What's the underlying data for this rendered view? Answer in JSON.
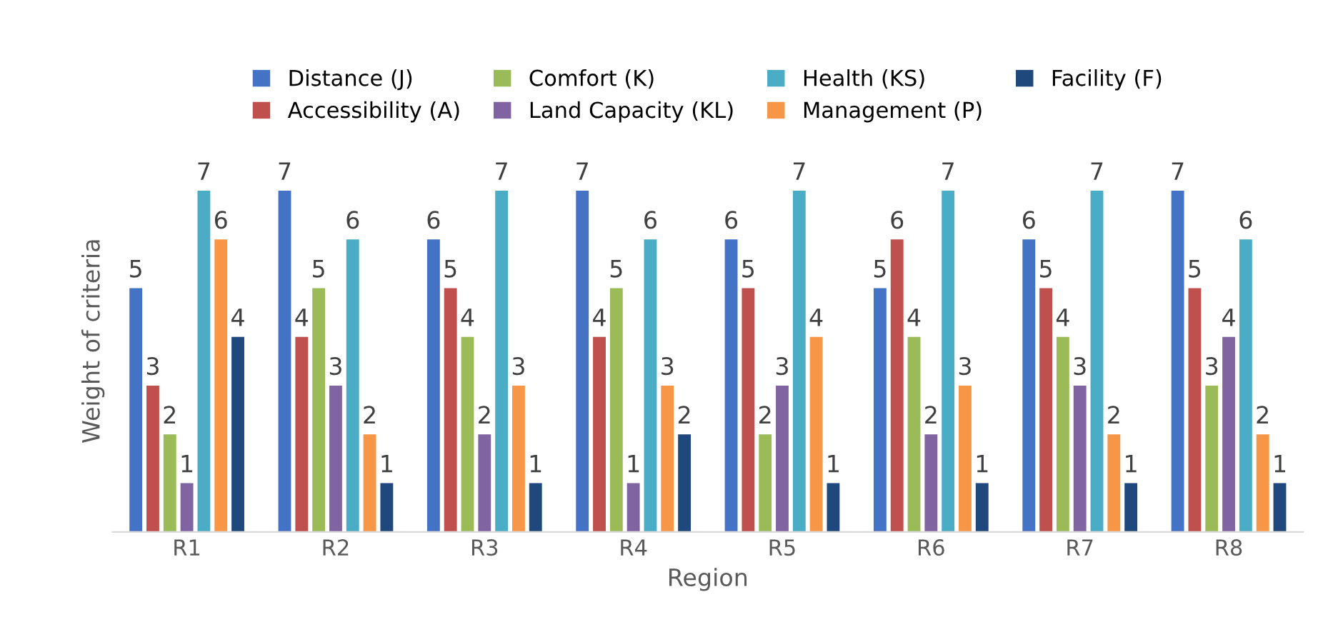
{
  "chart_data": {
    "type": "bar",
    "xlabel": "Region",
    "ylabel": "Weight of criteria",
    "categories": [
      "R1",
      "R2",
      "R3",
      "R4",
      "R5",
      "R6",
      "R7",
      "R8"
    ],
    "series": [
      {
        "name": "Distance (J)",
        "color": "#4472c4",
        "values": [
          5,
          7,
          6,
          7,
          6,
          5,
          6,
          7
        ]
      },
      {
        "name": "Accessibility (A)",
        "color": "#c0504d",
        "values": [
          3,
          4,
          5,
          4,
          5,
          6,
          5,
          5
        ]
      },
      {
        "name": "Comfort (K)",
        "color": "#9bbb59",
        "values": [
          2,
          5,
          4,
          5,
          2,
          4,
          4,
          3
        ]
      },
      {
        "name": "Land Capacity (KL)",
        "color": "#8064a2",
        "values": [
          1,
          3,
          2,
          1,
          3,
          2,
          3,
          4
        ]
      },
      {
        "name": "Health (KS)",
        "color": "#4bacc6",
        "values": [
          7,
          6,
          7,
          6,
          7,
          7,
          7,
          6
        ]
      },
      {
        "name": "Management (P)",
        "color": "#f79646",
        "values": [
          6,
          2,
          3,
          3,
          4,
          3,
          2,
          2
        ]
      },
      {
        "name": "Facility (F)",
        "color": "#1f497d",
        "values": [
          4,
          1,
          1,
          2,
          1,
          1,
          1,
          1
        ]
      }
    ],
    "data_labels": true,
    "legend": "top",
    "grid": false
  }
}
